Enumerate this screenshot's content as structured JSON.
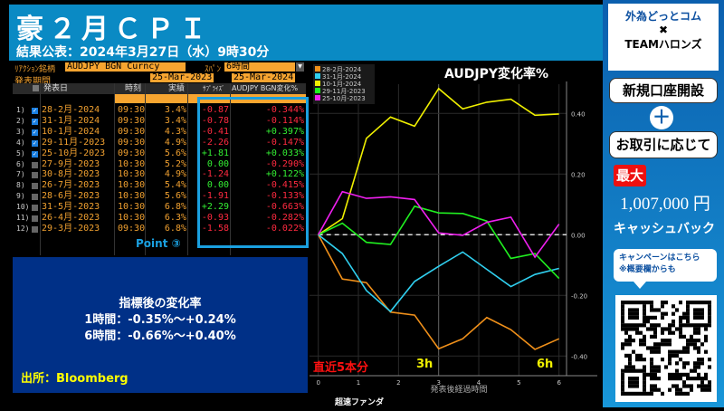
{
  "header": {
    "title": "豪２月ＣＰＩ",
    "subtitle": "結果公表：2024年3月27日（水）9時30分"
  },
  "controls": {
    "ticker_label": "ﾘｱｸｼｮﾝ銘柄",
    "ticker_value": "AUDJPY BGN Curncy",
    "span_label": "ｽﾊﾟﾝ",
    "span_value": "6時間",
    "period_label": "発表期間",
    "date_from": "25-Mar-2023",
    "date_to": "25-Mar-2024"
  },
  "table": {
    "columns": [
      "発表日",
      "時刻",
      "実績",
      "ｻﾌﾟﾗｲｽﾞ",
      "AUDJPY BGN変化%"
    ],
    "rows": [
      {
        "idx": "1)",
        "checked": true,
        "date": "28-2月-2024",
        "time": "09:30",
        "actual": "3.4%",
        "surprise": "-0.87",
        "change": "-0.344%"
      },
      {
        "idx": "2)",
        "checked": true,
        "date": "31-1月-2024",
        "time": "09:30",
        "actual": "3.4%",
        "surprise": "-0.78",
        "change": "-0.114%"
      },
      {
        "idx": "3)",
        "checked": true,
        "date": "10-1月-2024",
        "time": "09:30",
        "actual": "4.3%",
        "surprise": "-0.41",
        "change": "+0.397%"
      },
      {
        "idx": "4)",
        "checked": true,
        "date": "29-11月-2023",
        "time": "09:30",
        "actual": "4.9%",
        "surprise": "-2.26",
        "change": "-0.147%"
      },
      {
        "idx": "5)",
        "checked": true,
        "date": "25-10月-2023",
        "time": "09:30",
        "actual": "5.6%",
        "surprise": "+1.81",
        "change": "+0.033%"
      },
      {
        "idx": "6)",
        "checked": false,
        "date": "27-9月-2023",
        "time": "10:30",
        "actual": "5.2%",
        "surprise": "0.00",
        "change": "-0.290%"
      },
      {
        "idx": "7)",
        "checked": false,
        "date": "30-8月-2023",
        "time": "10:30",
        "actual": "4.9%",
        "surprise": "-1.24",
        "change": "+0.122%"
      },
      {
        "idx": "8)",
        "checked": false,
        "date": "26-7月-2023",
        "time": "10:30",
        "actual": "5.4%",
        "surprise": "0.00",
        "change": "-0.415%"
      },
      {
        "idx": "9)",
        "checked": false,
        "date": "28-6月-2023",
        "time": "10:30",
        "actual": "5.6%",
        "surprise": "-1.91",
        "change": "-0.133%"
      },
      {
        "idx": "10)",
        "checked": false,
        "date": "31-5月-2023",
        "time": "10:30",
        "actual": "6.8%",
        "surprise": "+2.29",
        "change": "-0.663%"
      },
      {
        "idx": "11)",
        "checked": false,
        "date": "26-4月-2023",
        "time": "10:30",
        "actual": "6.3%",
        "surprise": "-0.93",
        "change": "-0.282%"
      },
      {
        "idx": "12)",
        "checked": false,
        "date": "29-3月-2023",
        "time": "09:30",
        "actual": "6.8%",
        "surprise": "-1.58",
        "change": "-0.022%"
      }
    ]
  },
  "point_label": "Point ③",
  "info": {
    "heading": "指標後の変化率",
    "line1": "1時間：-0.35%〜+0.24%",
    "line2": "6時間：-0.66%〜+0.40%",
    "source": "出所：Bloomberg"
  },
  "colors": {
    "positive": "#33ee33",
    "negative": "#ff2a40",
    "accent": "#1aa0e0"
  },
  "chart_data": {
    "type": "line",
    "title": "AUDJPY変化率%",
    "xlabel": "発表後経過時間",
    "x": [
      0,
      0.6,
      1.2,
      1.8,
      2.4,
      3,
      3.6,
      4.2,
      4.8,
      5.4,
      6
    ],
    "xlim": [
      0,
      6
    ],
    "ylim": [
      -0.45,
      0.5
    ],
    "xticks": [
      "0",
      "1",
      "2",
      "3",
      "4",
      "5",
      "6"
    ],
    "yticks": [
      "0.40",
      "0.20",
      "0.00",
      "-0.20",
      "-0.40"
    ],
    "legend_position": "top-left",
    "grid": true,
    "series": [
      {
        "name": "28-2月-2024",
        "color": "#f0901a",
        "values": [
          0,
          -0.146,
          -0.158,
          -0.255,
          -0.265,
          -0.376,
          -0.343,
          -0.273,
          -0.313,
          -0.378,
          -0.343
        ]
      },
      {
        "name": "31-1月-2024",
        "color": "#30d0f0",
        "values": [
          0,
          -0.062,
          -0.184,
          -0.253,
          -0.154,
          -0.104,
          -0.057,
          -0.114,
          -0.171,
          -0.131,
          -0.111
        ]
      },
      {
        "name": "10-1月-2024",
        "color": "#f0f000",
        "values": [
          0,
          0.053,
          0.318,
          0.388,
          0.358,
          0.482,
          0.415,
          0.437,
          0.447,
          0.394,
          0.398
        ]
      },
      {
        "name": "29-11月-2023",
        "color": "#20f020",
        "values": [
          0,
          0.038,
          -0.025,
          -0.032,
          0.094,
          0.072,
          0.07,
          0.045,
          -0.078,
          -0.062,
          -0.144
        ]
      },
      {
        "name": "25-10月-2023",
        "color": "#f020f0",
        "values": [
          0,
          0.142,
          0.12,
          0.125,
          0.116,
          0.006,
          -0.002,
          0.041,
          0.058,
          -0.074,
          0.035
        ]
      }
    ],
    "annotations": {
      "recent": "直近5本分",
      "h3": "3h",
      "h6": "6h"
    },
    "footer": "超速ファンダ"
  },
  "promo": {
    "brand1": "外為どっとコム",
    "cross": "✖",
    "brand2": "TEAMハロンズ",
    "btn1": "新規口座開設",
    "plus": "＋",
    "btn2": "お取引に応じて",
    "max": "最大",
    "amount": "1,007,000 円",
    "cashback": "キャッシュバック",
    "bubble1": "キャンペーンはこちら",
    "bubble2": "※概要欄からも"
  }
}
